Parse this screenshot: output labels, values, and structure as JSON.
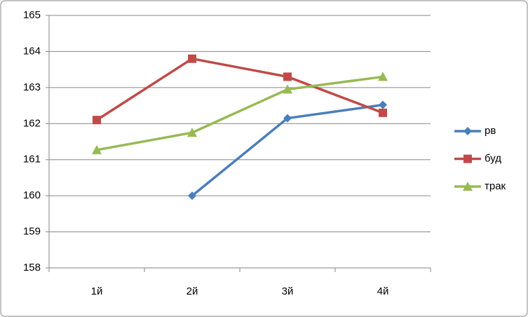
{
  "chart_data": {
    "type": "line",
    "categories": [
      "1й",
      "2й",
      "3й",
      "4й"
    ],
    "series": [
      {
        "name": "рв",
        "color": "#4a7ebb",
        "marker": "diamond",
        "values": [
          null,
          160,
          162.15,
          162.52
        ]
      },
      {
        "name": "буд",
        "color": "#be4b48",
        "marker": "square",
        "values": [
          162.1,
          163.8,
          163.3,
          162.3
        ]
      },
      {
        "name": "трак",
        "color": "#98b954",
        "marker": "triangle",
        "values": [
          161.27,
          161.75,
          162.95,
          163.3
        ]
      }
    ],
    "ylim": [
      158,
      165
    ],
    "yticks": [
      158,
      159,
      160,
      161,
      162,
      163,
      164,
      165
    ],
    "grid": true,
    "legend": "right"
  }
}
